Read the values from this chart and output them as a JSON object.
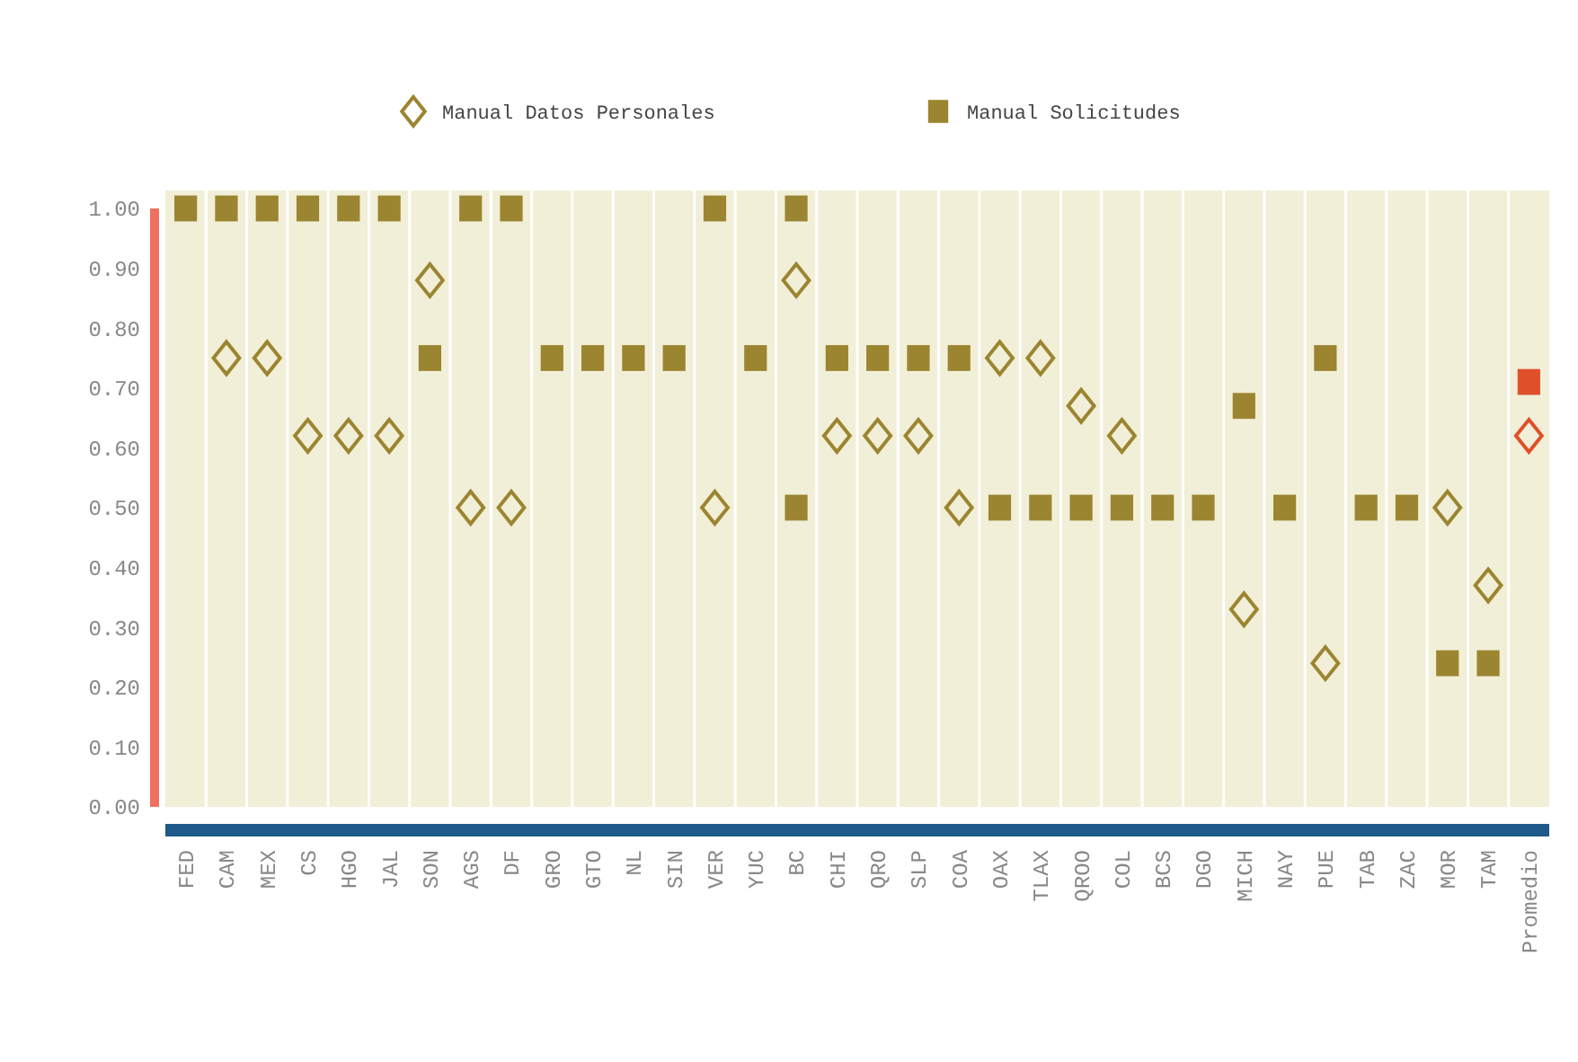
{
  "chart_data": {
    "type": "scatter",
    "categories": [
      "FED",
      "CAM",
      "MEX",
      "CS",
      "HGO",
      "JAL",
      "SON",
      "AGS",
      "DF",
      "GRO",
      "GTO",
      "NL",
      "SIN",
      "VER",
      "YUC",
      "BC",
      "CHI",
      "QRO",
      "SLP",
      "COA",
      "OAX",
      "TLAX",
      "QROO",
      "COL",
      "BCS",
      "DGO",
      "MICH",
      "NAY",
      "PUE",
      "TAB",
      "ZAC",
      "MOR",
      "TAM",
      "Promedio"
    ],
    "series": [
      {
        "name": "Manual Datos Personales",
        "marker": "diamond",
        "color": "#9c8530",
        "colors": [
          "#9c8530",
          "#9c8530",
          "#9c8530",
          "#9c8530",
          "#9c8530",
          "#9c8530",
          "#9c8530",
          "#9c8530",
          "#9c8530",
          "#9c8530",
          "#9c8530",
          "#9c8530",
          "#9c8530",
          "#9c8530",
          "#9c8530",
          "#9c8530",
          "#9c8530",
          "#9c8530",
          "#9c8530",
          "#9c8530",
          "#9c8530",
          "#9c8530",
          "#9c8530",
          "#9c8530",
          "#9c8530",
          "#9c8530",
          "#9c8530",
          "#9c8530",
          "#9c8530",
          "#9c8530",
          "#9c8530",
          "#9c8530",
          "#9c8530",
          "#e0502a"
        ],
        "values": [
          null,
          0.75,
          0.75,
          0.62,
          0.62,
          0.62,
          0.88,
          0.5,
          0.5,
          null,
          null,
          null,
          null,
          0.5,
          null,
          0.88,
          0.62,
          0.62,
          0.62,
          0.5,
          0.75,
          0.75,
          0.67,
          0.62,
          null,
          null,
          0.33,
          null,
          0.24,
          null,
          null,
          0.5,
          0.37,
          0.62
        ]
      },
      {
        "name": "Manual Solicitudes",
        "marker": "square",
        "color": "#9c8530",
        "colors": [
          "#9c8530",
          "#9c8530",
          "#9c8530",
          "#9c8530",
          "#9c8530",
          "#9c8530",
          "#9c8530",
          "#9c8530",
          "#9c8530",
          "#9c8530",
          "#9c8530",
          "#9c8530",
          "#9c8530",
          "#9c8530",
          "#9c8530",
          "#9c8530",
          "#9c8530",
          "#9c8530",
          "#9c8530",
          "#9c8530",
          "#9c8530",
          "#9c8530",
          "#9c8530",
          "#9c8530",
          "#9c8530",
          "#9c8530",
          "#9c8530",
          "#9c8530",
          "#9c8530",
          "#9c8530",
          "#9c8530",
          "#9c8530",
          "#9c8530",
          "#e0502a"
        ],
        "values": [
          1,
          1,
          1,
          1,
          1,
          1,
          0.75,
          1,
          1,
          0.75,
          0.75,
          0.75,
          0.75,
          1,
          0.75,
          1,
          0.75,
          0.75,
          0.75,
          0.75,
          0.5,
          0.5,
          0.5,
          0.5,
          0.5,
          0.5,
          0.67,
          0.5,
          0.75,
          0.5,
          0.5,
          0.24,
          0.24,
          0.71
        ]
      },
      {
        "marker": "square",
        "color": "#9c8530",
        "values": [
          null,
          null,
          null,
          null,
          null,
          null,
          null,
          null,
          null,
          null,
          null,
          null,
          null,
          null,
          null,
          0.5,
          null,
          null,
          null,
          null,
          null,
          null,
          null,
          null,
          null,
          null,
          null,
          null,
          null,
          null,
          null,
          null,
          null,
          null
        ]
      }
    ],
    "ylim": [
      0,
      1
    ],
    "yticks": [
      {
        "value": 0,
        "label": "0.00"
      },
      {
        "value": 0.1,
        "label": "0.10"
      },
      {
        "value": 0.2,
        "label": "0.20"
      },
      {
        "value": 0.3,
        "label": "0.30"
      },
      {
        "value": 0.4,
        "label": "0.40"
      },
      {
        "value": 0.5,
        "label": "0.50"
      },
      {
        "value": 0.6,
        "label": "0.60"
      },
      {
        "value": 0.7,
        "label": "0.70"
      },
      {
        "value": 0.8,
        "label": "0.80"
      },
      {
        "value": 0.9,
        "label": "0.90"
      },
      {
        "value": 1,
        "label": "1.00"
      }
    ],
    "grid": "x",
    "legend": "top"
  }
}
